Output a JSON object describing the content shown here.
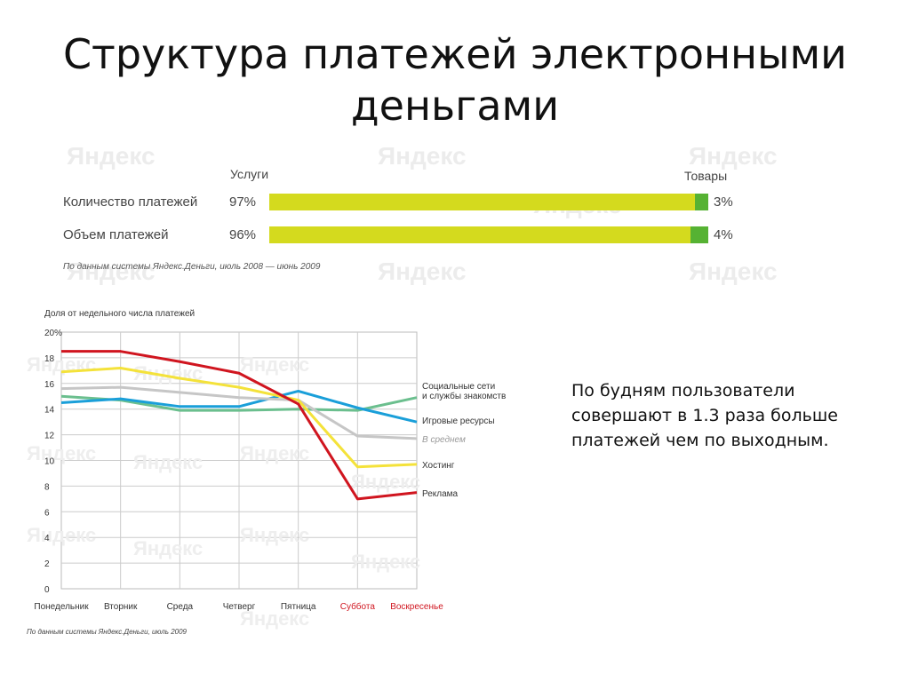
{
  "title": [
    "Структура платежей электронными",
    "деньгами"
  ],
  "bar_chart": {
    "left_header": "Услуги",
    "right_header": "Товары",
    "rows": [
      {
        "label": "Количество платежей",
        "left_value": 97,
        "left_text": "97%",
        "right_text": "3%"
      },
      {
        "label": "Объем платежей",
        "left_value": 96,
        "left_text": "96%",
        "right_text": "4%"
      }
    ],
    "source": "По данным системы Яндекс.Деньги, июль 2008 — июнь 2009",
    "colors": {
      "services": "#d4da1e",
      "goods": "#56b233"
    }
  },
  "watermark_text": "Яндекс",
  "chart_data": {
    "type": "line",
    "ylabel": "Доля от недельного числа платежей",
    "ylim": [
      0,
      20
    ],
    "y_ticks": [
      "0",
      "2",
      "4",
      "6",
      "8",
      "10",
      "12",
      "14",
      "16",
      "18",
      "20%"
    ],
    "categories": [
      "Понедельник",
      "Вторник",
      "Среда",
      "Четверг",
      "Пятница",
      "Суббота",
      "Воскресенье"
    ],
    "weekend_color": "#d0151f",
    "series": [
      {
        "name": "Социальные сети\nи службы знакомств",
        "color": "#6bbf8e",
        "values": [
          15.0,
          14.7,
          13.9,
          13.9,
          14.0,
          13.9,
          14.9
        ]
      },
      {
        "name": "Игровые ресурсы",
        "color": "#1a9fd9",
        "values": [
          14.5,
          14.8,
          14.2,
          14.2,
          15.4,
          14.1,
          13.0
        ]
      },
      {
        "name": "В среднем",
        "color": "#c6c6c6",
        "italic": true,
        "values": [
          15.6,
          15.7,
          15.3,
          14.9,
          14.7,
          11.9,
          11.7
        ]
      },
      {
        "name": "Хостинг",
        "color": "#f4e23a",
        "values": [
          16.9,
          17.2,
          16.4,
          15.7,
          14.7,
          9.5,
          9.7
        ]
      },
      {
        "name": "Реклама",
        "color": "#d0151f",
        "values": [
          18.5,
          18.5,
          17.7,
          16.8,
          14.4,
          7.0,
          7.5
        ]
      }
    ],
    "source": "По данным системы Яндекс.Деньги, июль 2009"
  },
  "side_text": "По будням пользователи совершают в 1.3 раза больше платежей чем по выходным."
}
